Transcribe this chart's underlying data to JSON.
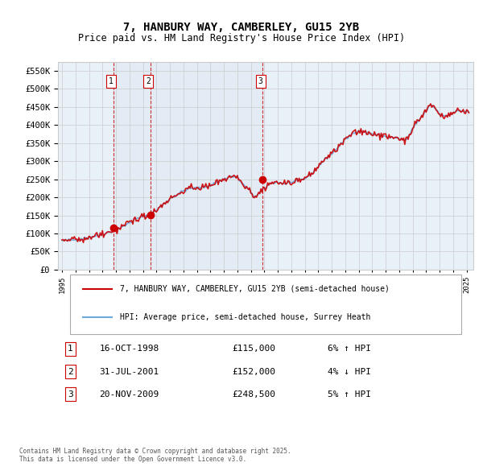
{
  "title": "7, HANBURY WAY, CAMBERLEY, GU15 2YB",
  "subtitle": "Price paid vs. HM Land Registry's House Price Index (HPI)",
  "legend_line1": "7, HANBURY WAY, CAMBERLEY, GU15 2YB (semi-detached house)",
  "legend_line2": "HPI: Average price, semi-detached house, Surrey Heath",
  "sale_dates": [
    "1998-10-16",
    "2001-07-31",
    "2009-11-20"
  ],
  "sale_prices": [
    115000,
    152000,
    248500
  ],
  "sale_labels": [
    "1",
    "2",
    "3"
  ],
  "sale_info": [
    "16-OCT-1998    £115,000    6% ↑ HPI",
    "31-JUL-2001    £152,000    4% ↓ HPI",
    "20-NOV-2009    £248,500    5% ↑ HPI"
  ],
  "table_rows": [
    {
      "num": "1",
      "date": "16-OCT-1998",
      "price": "£115,000",
      "hpi": "6% ↑ HPI"
    },
    {
      "num": "2",
      "date": "31-JUL-2001",
      "price": "£152,000",
      "hpi": "4% ↓ HPI"
    },
    {
      "num": "3",
      "date": "20-NOV-2009",
      "price": "£248,500",
      "hpi": "5% ↑ HPI"
    }
  ],
  "footer": "Contains HM Land Registry data © Crown copyright and database right 2025.\nThis data is licensed under the Open Government Licence v3.0.",
  "hpi_color": "#6fa8dc",
  "price_color": "#cc0000",
  "sale_marker_color": "#cc0000",
  "vline_color": "#cc0000",
  "bg_shade_color": "#dce6f1",
  "grid_color": "#cccccc",
  "bg_color": "#ffffff",
  "plot_bg_color": "#e8f0f8",
  "ylim": [
    0,
    575000
  ],
  "yticks": [
    0,
    50000,
    100000,
    150000,
    200000,
    250000,
    300000,
    350000,
    400000,
    450000,
    500000,
    550000
  ],
  "ylabel_format": "£{0}K"
}
